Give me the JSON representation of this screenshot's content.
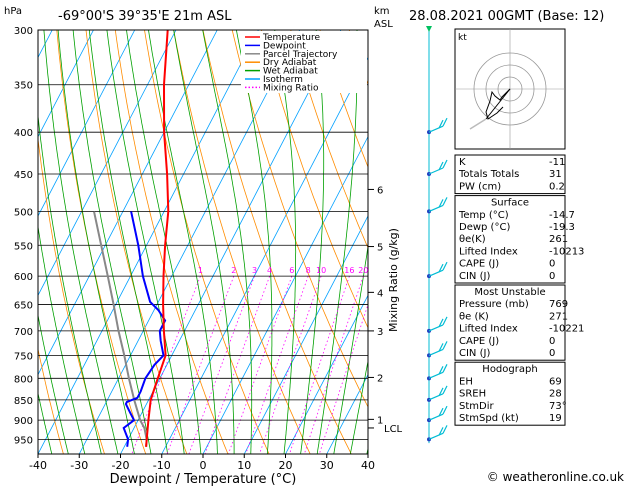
{
  "header": {
    "location": "-69°00'S  39°35'E  21m  ASL",
    "datetime": "28.08.2021  00GMT  (Base: 12)",
    "hpa_label": "hPa",
    "km_label": "km",
    "asl_label": "ASL"
  },
  "legend": {
    "items": [
      {
        "label": "Temperature",
        "color": "#ff0000",
        "dash": "solid"
      },
      {
        "label": "Dewpoint",
        "color": "#0000ff",
        "dash": "solid"
      },
      {
        "label": "Parcel Trajectory",
        "color": "#888888",
        "dash": "solid"
      },
      {
        "label": "Dry Adiabat",
        "color": "#ff8c00",
        "dash": "solid"
      },
      {
        "label": "Wet Adiabat",
        "color": "#00a000",
        "dash": "solid"
      },
      {
        "label": "Isotherm",
        "color": "#00a0ff",
        "dash": "solid"
      },
      {
        "label": "Mixing Ratio",
        "color": "#ff00ff",
        "dash": "dotted"
      }
    ]
  },
  "chart_data": {
    "type": "line",
    "subtype": "skew-T log-P diagram",
    "xlabel": "Dewpoint / Temperature (°C)",
    "ylabel_right": "Mixing Ratio (g/kg)",
    "x_ticks": [
      -40,
      -30,
      -20,
      -10,
      0,
      10,
      20,
      30,
      40
    ],
    "pressure_ticks": [
      300,
      350,
      400,
      450,
      500,
      550,
      600,
      650,
      700,
      750,
      800,
      850,
      900,
      950
    ],
    "xlim": [
      -40,
      40
    ],
    "plim": [
      300,
      990
    ],
    "km_ticks": [
      {
        "label": "6",
        "p": 470
      },
      {
        "label": "5",
        "p": 552
      },
      {
        "label": "4",
        "p": 628
      },
      {
        "label": "3",
        "p": 700
      },
      {
        "label": "2",
        "p": 798
      },
      {
        "label": "1",
        "p": 898
      }
    ],
    "lcl_label": "LCL",
    "lcl_p": 920,
    "mixing_ratio_labels": [
      "1",
      "2",
      "3",
      "4",
      "6",
      "8",
      "10",
      "16",
      "20",
      "25"
    ],
    "mixing_ratio_values": [
      1,
      2,
      3,
      4,
      6,
      8,
      10,
      16,
      20,
      25
    ],
    "temperature": {
      "name": "Temperature",
      "p": [
        970,
        950,
        900,
        850,
        800,
        750,
        700,
        650,
        600,
        550,
        500,
        450,
        400,
        350,
        300
      ],
      "t": [
        -14.7,
        -15.5,
        -17.5,
        -19.5,
        -20.5,
        -21.5,
        -25,
        -28.5,
        -32,
        -35.5,
        -39,
        -44,
        -50,
        -56,
        -62
      ]
    },
    "dewpoint": {
      "name": "Dewpoint",
      "p": [
        970,
        950,
        920,
        900,
        880,
        860,
        855,
        845,
        830,
        800,
        770,
        750,
        720,
        700,
        680,
        660,
        645,
        600,
        550,
        500
      ],
      "t": [
        -19.3,
        -20,
        -22.5,
        -21,
        -23,
        -25,
        -25,
        -23,
        -23,
        -23.5,
        -23,
        -22,
        -24.5,
        -26,
        -26,
        -29,
        -32,
        -37,
        -42,
        -48
      ]
    },
    "parcel": {
      "name": "Parcel Trajectory",
      "p": [
        970,
        950,
        920,
        900,
        850,
        800,
        750,
        700,
        650,
        600,
        550,
        500
      ],
      "t": [
        -14.7,
        -15.5,
        -17.5,
        -19.5,
        -23.5,
        -27.5,
        -31.5,
        -36,
        -40.5,
        -45.5,
        -51,
        -57
      ]
    },
    "wind_barbs": [
      {
        "p": 300,
        "type": "marker"
      },
      {
        "p": 400,
        "type": "barb"
      },
      {
        "p": 450,
        "type": "barb"
      },
      {
        "p": 500,
        "type": "barb"
      },
      {
        "p": 600,
        "type": "barb"
      },
      {
        "p": 700,
        "type": "barb"
      },
      {
        "p": 750,
        "type": "barb"
      },
      {
        "p": 800,
        "type": "barb"
      },
      {
        "p": 850,
        "type": "barb"
      },
      {
        "p": 900,
        "type": "barb"
      },
      {
        "p": 950,
        "type": "barb"
      }
    ]
  },
  "hodograph": {
    "label": "kt"
  },
  "indices": {
    "rows": [
      {
        "label": "K",
        "value": "-11"
      },
      {
        "label": "Totals Totals",
        "value": "31"
      },
      {
        "label": "PW (cm)",
        "value": "0.2"
      }
    ]
  },
  "surface": {
    "title": "Surface",
    "rows": [
      {
        "label": "Temp (°C)",
        "value": "-14.7"
      },
      {
        "label": "Dewp (°C)",
        "value": "-19.3"
      },
      {
        "label": "θe(K)",
        "value": "261"
      },
      {
        "label": "Lifted Index",
        "value": "-10213"
      },
      {
        "label": "CAPE (J)",
        "value": "0"
      },
      {
        "label": "CIN (J)",
        "value": "0"
      }
    ]
  },
  "most_unstable": {
    "title": "Most Unstable",
    "rows": [
      {
        "label": "Pressure (mb)",
        "value": "769"
      },
      {
        "label": "θe (K)",
        "value": "271"
      },
      {
        "label": "Lifted Index",
        "value": "-10221"
      },
      {
        "label": "CAPE (J)",
        "value": "0"
      },
      {
        "label": "CIN (J)",
        "value": "0"
      }
    ]
  },
  "hodograph_table": {
    "title": "Hodograph",
    "rows": [
      {
        "label": "EH",
        "value": "69"
      },
      {
        "label": "SREH",
        "value": "28"
      },
      {
        "label": "StmDir",
        "value": "73°"
      },
      {
        "label": "StmSpd (kt)",
        "value": "19"
      }
    ]
  },
  "footer": {
    "credit": "© weatheronline.co.uk"
  },
  "colors": {
    "temperature": "#ff0000",
    "dewpoint": "#0000ff",
    "parcel": "#888888",
    "dry_adiabat": "#ff8c00",
    "wet_adiabat": "#00a000",
    "isotherm": "#00a0ff",
    "mixing_ratio": "#ff00ff",
    "wind_barb": "#00bcd4"
  }
}
